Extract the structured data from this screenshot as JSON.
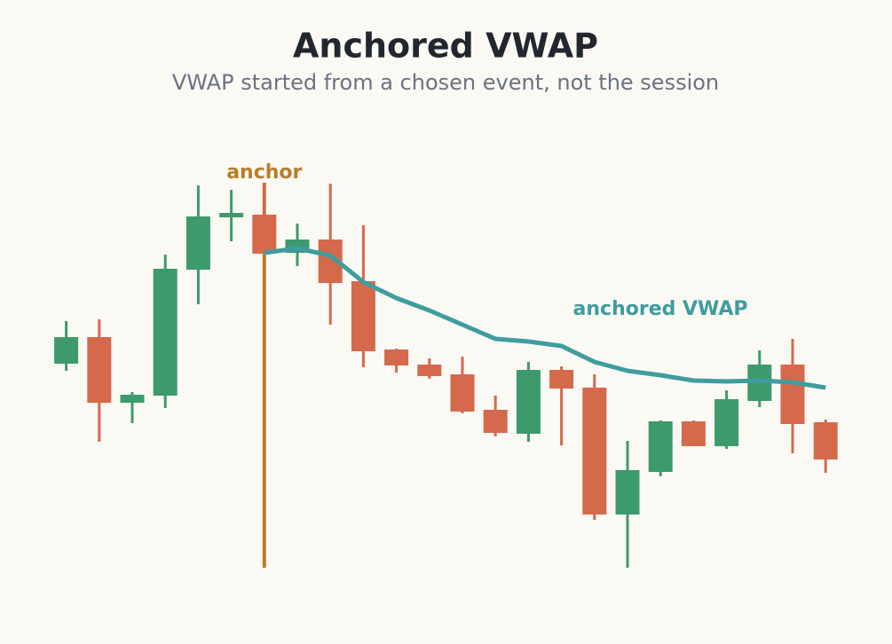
{
  "chart_data": {
    "type": "candlestick",
    "title": "Anchored VWAP",
    "subtitle": "VWAP started from a chosen event, not the session",
    "categories": [
      null,
      null,
      null,
      null,
      null,
      null,
      null,
      null,
      null,
      null,
      null,
      null,
      null,
      null,
      null,
      null,
      null,
      null,
      null,
      null,
      null,
      null,
      null,
      null
    ],
    "open": [
      46,
      52,
      37.2,
      38.8,
      67.2,
      79,
      79.6,
      71,
      74,
      64.6,
      49.2,
      45.8,
      43.6,
      35.6,
      30.2,
      44.6,
      40.6,
      12,
      21.6,
      33,
      27.4,
      37.6,
      45.8,
      32.8
    ],
    "high": [
      55.6,
      56,
      39.6,
      70.6,
      86.2,
      85.2,
      86.8,
      77.6,
      86.6,
      77.2,
      49.4,
      47.2,
      47.6,
      38.8,
      46.4,
      45.4,
      43.6,
      28.6,
      33.2,
      33.2,
      40,
      49,
      51.6,
      33.4
    ],
    "low": [
      44.4,
      28.4,
      32.6,
      36,
      59.4,
      73.6,
      70.8,
      68,
      54.8,
      45.2,
      44,
      42.6,
      34.8,
      29.6,
      28.4,
      27.6,
      10.8,
      0,
      20.6,
      27.4,
      26.8,
      36.2,
      25.8,
      21.4
    ],
    "close": [
      52,
      37.2,
      39,
      67.4,
      79.2,
      80,
      70.8,
      74,
      64.2,
      48.8,
      45.6,
      43.2,
      35.2,
      30.4,
      44.6,
      40.4,
      12,
      22,
      33,
      27.4,
      38,
      45.8,
      32.4,
      24.4
    ],
    "up_color": "#3d9a6c",
    "down_color": "#d4694c",
    "series": [
      {
        "name": "anchored VWAP",
        "color": "#3f9c9f",
        "values": [
          null,
          null,
          null,
          null,
          null,
          null,
          71,
          72,
          70.4,
          64.4,
          60.8,
          58,
          54.8,
          51.6,
          51,
          50,
          46.4,
          44.4,
          43.4,
          42.2,
          42,
          42.2,
          41.8,
          40.6
        ]
      }
    ],
    "anchor": {
      "label": "anchor",
      "index": 6,
      "color": "#b87d2a"
    },
    "ylim": [
      0,
      100
    ]
  }
}
